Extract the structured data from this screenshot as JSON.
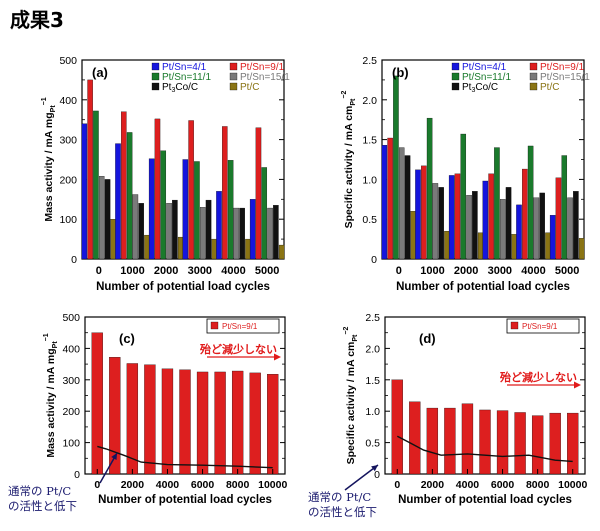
{
  "page": {
    "title": "成果3"
  },
  "colors": {
    "pt_sn_4_1": "#1515dd",
    "pt_sn_9_1": "#dd1f1f",
    "pt_sn_11_1": "#1a7a2c",
    "pt_sn_15_1": "#7a7a7a",
    "pt3co_c": "#111111",
    "pt_c": "#8a7414",
    "annotation_red": "#e11a1a",
    "annotation_blue": "#14145e"
  },
  "notes": {
    "c_arrow": "殆ど減少しない",
    "d_arrow": "殆ど減少しない",
    "c_low_1": "通常の Pt/C",
    "c_low_2": "の活性と低下",
    "d_low_1": "通常の Pt/C",
    "d_low_2": "の活性と低下"
  },
  "chart_data": [
    {
      "type": "bar",
      "panel_label": "(a)",
      "xlabel": "Number of potential load cycles",
      "ylabel": "Mass activity / mA mg",
      "ylabel_sub": "Pt",
      "ylabel_sup": "−1",
      "categories": [
        "0",
        "1000",
        "2000",
        "3000",
        "4000",
        "5000"
      ],
      "ylim": [
        0,
        500
      ],
      "yticks": [
        "0",
        "100",
        "200",
        "300",
        "400",
        "500"
      ],
      "legend": "top",
      "series": [
        {
          "name": "Pt/Sn=4/1",
          "color": "#1515dd",
          "values": [
            340,
            290,
            252,
            250,
            170,
            150
          ]
        },
        {
          "name": "Pt/Sn=9/1",
          "color": "#dd1f1f",
          "values": [
            450,
            370,
            352,
            348,
            333,
            330
          ]
        },
        {
          "name": "Pt/Sn=11/1",
          "color": "#1a7a2c",
          "values": [
            372,
            318,
            272,
            245,
            248,
            230
          ]
        },
        {
          "name": "Pt/Sn=15/1",
          "color": "#7a7a7a",
          "values": [
            208,
            162,
            140,
            130,
            128,
            128
          ]
        },
        {
          "name": "Pt3Co/C",
          "color": "#111111",
          "values": [
            200,
            140,
            148,
            148,
            128,
            135
          ]
        },
        {
          "name": "Pt/C",
          "color": "#8a7414",
          "values": [
            100,
            60,
            55,
            50,
            50,
            35
          ]
        }
      ]
    },
    {
      "type": "bar",
      "panel_label": "(b)",
      "xlabel": "Number of potential load cycles",
      "ylabel": "Specific activity / mA cm",
      "ylabel_sub": "Pt",
      "ylabel_sup": "−2",
      "categories": [
        "0",
        "1000",
        "2000",
        "3000",
        "4000",
        "5000"
      ],
      "ylim": [
        0,
        2.5
      ],
      "yticks": [
        "0",
        "0.5",
        "1.0",
        "1.5",
        "2.0",
        "2.5"
      ],
      "legend": "top",
      "series": [
        {
          "name": "Pt/Sn=4/1",
          "color": "#1515dd",
          "values": [
            1.43,
            1.12,
            1.05,
            0.98,
            0.68,
            0.55
          ]
        },
        {
          "name": "Pt/Sn=9/1",
          "color": "#dd1f1f",
          "values": [
            1.52,
            1.17,
            1.07,
            1.07,
            1.13,
            1.02
          ]
        },
        {
          "name": "Pt/Sn=11/1",
          "color": "#1a7a2c",
          "values": [
            2.3,
            1.77,
            1.57,
            1.4,
            1.42,
            1.3
          ]
        },
        {
          "name": "Pt/Sn=15/1",
          "color": "#7a7a7a",
          "values": [
            1.4,
            0.95,
            0.8,
            0.75,
            0.77,
            0.77
          ]
        },
        {
          "name": "Pt3Co/C",
          "color": "#111111",
          "values": [
            1.3,
            0.9,
            0.85,
            0.9,
            0.83,
            0.85
          ]
        },
        {
          "name": "Pt/C",
          "color": "#8a7414",
          "values": [
            0.6,
            0.35,
            0.33,
            0.31,
            0.33,
            0.26
          ]
        }
      ]
    },
    {
      "type": "bar",
      "panel_label": "(c)",
      "xlabel": "Number of potential load cycles",
      "ylabel": "Mass activity / mA mg",
      "ylabel_sub": "Pt",
      "ylabel_sup": "−1",
      "x": [
        0,
        1000,
        2000,
        3000,
        4000,
        5000,
        6000,
        7000,
        8000,
        9000,
        10000
      ],
      "xlim": [
        -700,
        10700
      ],
      "xticks": [
        "0",
        "2000",
        "4000",
        "6000",
        "8000",
        "10000"
      ],
      "ylim": [
        0,
        500
      ],
      "yticks": [
        "0",
        "100",
        "200",
        "300",
        "400",
        "500"
      ],
      "legend": "top-right",
      "series": [
        {
          "name": "Pt/Sn=9/1",
          "color": "#dd1f1f",
          "values": [
            450,
            372,
            352,
            348,
            335,
            332,
            325,
            325,
            328,
            322,
            318
          ]
        }
      ],
      "curve": [
        [
          0,
          88
        ],
        [
          500,
          80
        ],
        [
          1500,
          60
        ],
        [
          2500,
          38
        ],
        [
          4000,
          30
        ],
        [
          6000,
          28
        ],
        [
          8000,
          25
        ],
        [
          10000,
          20
        ]
      ]
    },
    {
      "type": "bar",
      "panel_label": "(d)",
      "xlabel": "Number of potential load cycles",
      "ylabel": "Specific activity / mA cm",
      "ylabel_sub": "Pt",
      "ylabel_sup": "−2",
      "x": [
        0,
        1000,
        2000,
        3000,
        4000,
        5000,
        6000,
        7000,
        8000,
        9000,
        10000
      ],
      "xlim": [
        -700,
        10700
      ],
      "xticks": [
        "0",
        "2000",
        "4000",
        "6000",
        "8000",
        "10000"
      ],
      "ylim": [
        0,
        2.5
      ],
      "yticks": [
        "0",
        "0.5",
        "1.0",
        "1.5",
        "2.0",
        "2.5"
      ],
      "legend": "top-right",
      "series": [
        {
          "name": "Pt/Sn=9/1",
          "color": "#dd1f1f",
          "values": [
            1.5,
            1.15,
            1.05,
            1.05,
            1.12,
            1.02,
            1.01,
            0.98,
            0.93,
            0.97,
            0.97
          ]
        }
      ],
      "curve": [
        [
          0,
          0.6
        ],
        [
          700,
          0.5
        ],
        [
          1500,
          0.38
        ],
        [
          2500,
          0.3
        ],
        [
          4000,
          0.32
        ],
        [
          6000,
          0.28
        ],
        [
          7500,
          0.3
        ],
        [
          9000,
          0.22
        ],
        [
          10000,
          0.2
        ]
      ]
    }
  ]
}
